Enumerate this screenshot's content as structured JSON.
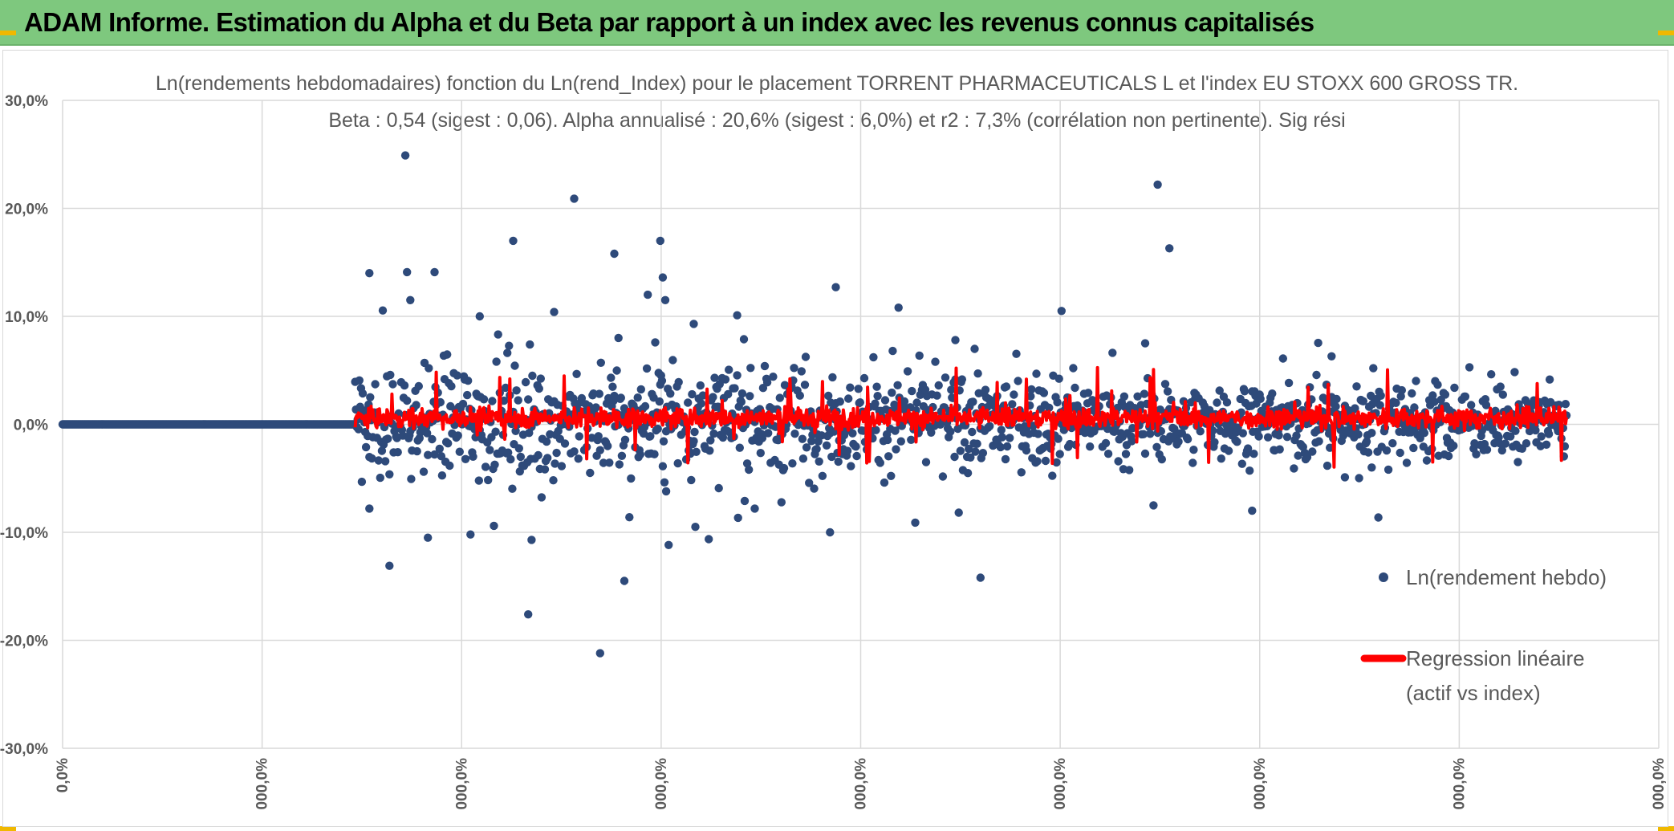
{
  "header": {
    "title": "ADAM Informe. Estimation du Alpha et du Beta par rapport à un index avec les revenus connus capitalisés",
    "background_color": "#7ec87e"
  },
  "chart_data": {
    "type": "scatter",
    "title_line_1": "Ln(rendements hebdomadaires) fonction du Ln(rend_Index) pour le placement TORRENT PHARMACEUTICALS L et l'index EU STOXX 600 GROSS TR.",
    "title_line_2": "Beta : 0,54 (sigest : 0,06). Alpha annualisé : 20,6% (sigest : 6,0%) et r2 : 7,3% (corrélation non pertinente). Sig rési",
    "ylim": [
      -0.3,
      0.3
    ],
    "y_ticks": [
      {
        "value": 0.3,
        "label": "30,0%"
      },
      {
        "value": 0.2,
        "label": "20,0%"
      },
      {
        "value": 0.1,
        "label": "10,0%"
      },
      {
        "value": 0.0,
        "label": "0,0%"
      },
      {
        "value": -0.1,
        "label": "-10,0%"
      },
      {
        "value": -0.2,
        "label": "-20,0%"
      },
      {
        "value": -0.3,
        "label": "-30,0%"
      }
    ],
    "x_tick_labels": [
      "0,0%",
      "000,0%",
      "000,0%",
      "000,0%",
      "000,0%",
      "000,0%",
      "000,0%",
      "000,0%",
      "000,0%"
    ],
    "grid": true,
    "legend_position": "right",
    "series": [
      {
        "name": "Ln(rendement hebdo)",
        "color": "#2e4a7a",
        "marker": "circle"
      },
      {
        "name": "Regression linéaire (actif vs index)",
        "color": "#ff0000",
        "marker": "line"
      }
    ],
    "legend_labels": [
      "Ln(rendement hebdo)",
      "Regression linéaire",
      "(actif vs index)"
    ],
    "zero_run_weeks": 350,
    "active_weeks": 1450,
    "highlighted_points": [
      {
        "week": 367,
        "y": 0.14
      },
      {
        "week": 367,
        "y": -0.078
      },
      {
        "week": 410,
        "y": 0.249
      },
      {
        "week": 412,
        "y": 0.141
      },
      {
        "week": 416,
        "y": 0.115
      },
      {
        "week": 391,
        "y": -0.131
      },
      {
        "week": 445,
        "y": 0.141
      },
      {
        "week": 437,
        "y": -0.105
      },
      {
        "week": 499,
        "y": 0.1
      },
      {
        "week": 488,
        "y": -0.102
      },
      {
        "week": 539,
        "y": 0.17
      },
      {
        "week": 557,
        "y": -0.176
      },
      {
        "week": 561,
        "y": -0.107
      },
      {
        "week": 588,
        "y": 0.104
      },
      {
        "week": 612,
        "y": 0.209
      },
      {
        "week": 643,
        "y": -0.212
      },
      {
        "week": 660,
        "y": 0.158
      },
      {
        "week": 665,
        "y": 0.08
      },
      {
        "week": 672,
        "y": -0.145
      },
      {
        "week": 678,
        "y": -0.086
      },
      {
        "week": 700,
        "y": 0.12
      },
      {
        "week": 715,
        "y": 0.17
      },
      {
        "week": 718,
        "y": 0.136
      },
      {
        "week": 721,
        "y": 0.115
      },
      {
        "week": 722,
        "y": -0.062
      },
      {
        "week": 755,
        "y": 0.093
      },
      {
        "week": 807,
        "y": 0.101
      },
      {
        "week": 828,
        "y": -0.078
      },
      {
        "week": 918,
        "y": -0.1
      },
      {
        "week": 925,
        "y": 0.127
      },
      {
        "week": 1000,
        "y": 0.108
      },
      {
        "week": 1020,
        "y": -0.091
      },
      {
        "week": 1068,
        "y": 0.078
      },
      {
        "week": 1098,
        "y": -0.142
      },
      {
        "week": 1195,
        "y": 0.105
      },
      {
        "week": 1295,
        "y": 0.075
      },
      {
        "week": 1310,
        "y": 0.222
      },
      {
        "week": 1324,
        "y": 0.163
      },
      {
        "week": 1305,
        "y": -0.075
      },
      {
        "week": 1423,
        "y": -0.08
      },
      {
        "week": 1460,
        "y": 0.061
      },
      {
        "week": 1518,
        "y": 0.063
      },
      {
        "week": 1534,
        "y": -0.049
      },
      {
        "week": 1568,
        "y": 0.052
      },
      {
        "week": 1566,
        "y": -0.04
      }
    ]
  }
}
